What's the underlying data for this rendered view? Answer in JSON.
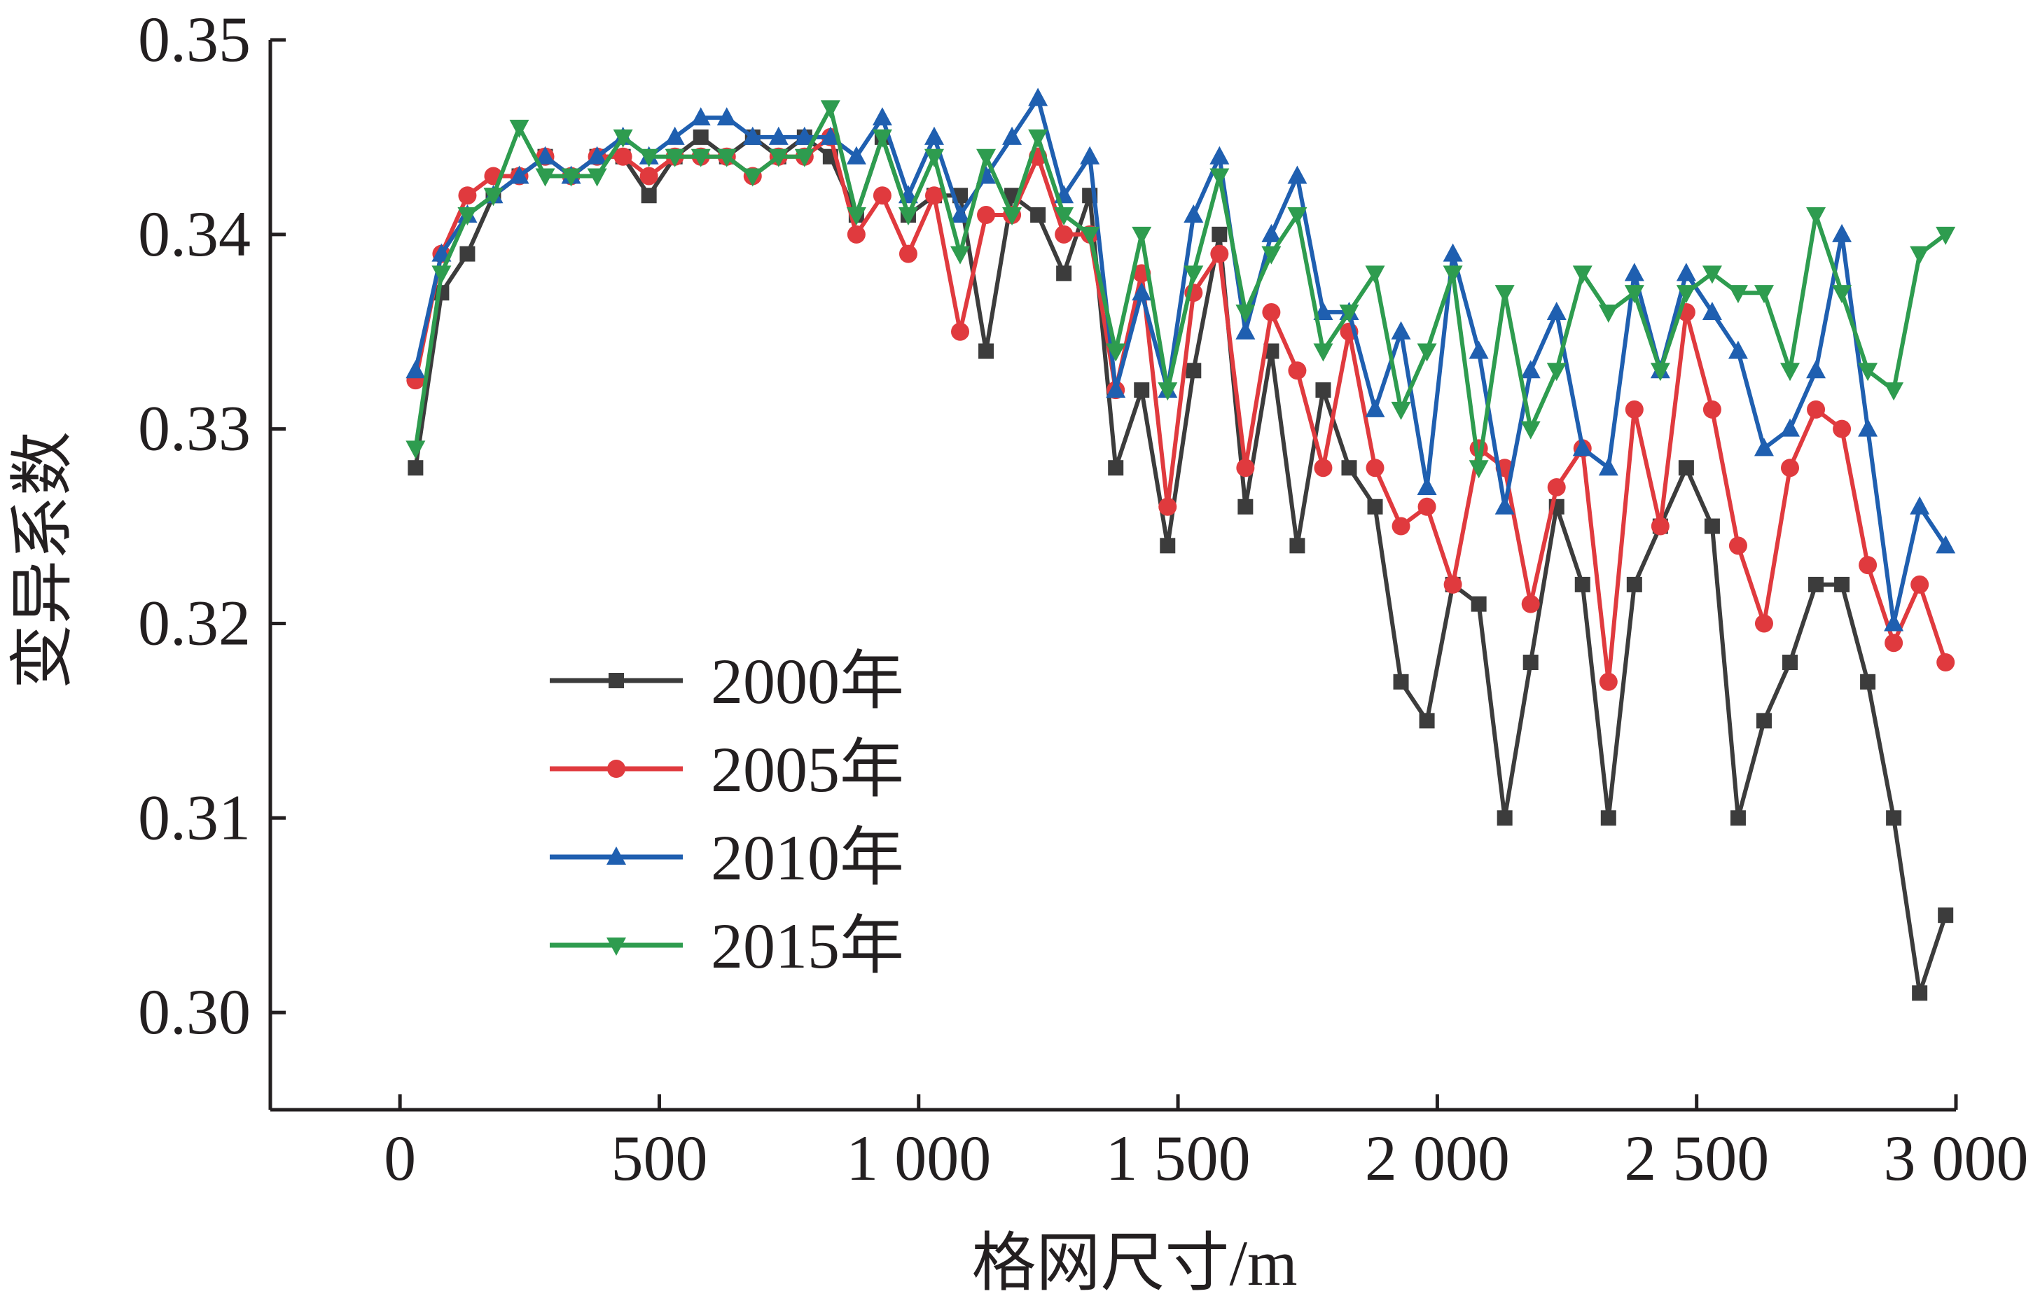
{
  "chart_data": {
    "type": "line",
    "xlabel": "格网尺寸/m",
    "ylabel": "变异系数",
    "xlim": [
      -250,
      3000
    ],
    "ylim": [
      0.295,
      0.35
    ],
    "x_ticks": [
      0,
      500,
      1000,
      1500,
      2000,
      2500,
      3000
    ],
    "x_tick_labels": [
      "0",
      "500",
      "1 000",
      "1 500",
      "2 000",
      "2 500",
      "3 000"
    ],
    "y_ticks": [
      0.3,
      0.31,
      0.32,
      0.33,
      0.34,
      0.35
    ],
    "y_tick_labels": [
      "0.30",
      "0.31",
      "0.32",
      "0.33",
      "0.34",
      "0.35"
    ],
    "legend_position": "lower-left",
    "x": [
      30,
      80,
      130,
      180,
      230,
      280,
      330,
      380,
      430,
      480,
      530,
      580,
      630,
      680,
      730,
      780,
      830,
      880,
      930,
      980,
      1030,
      1080,
      1130,
      1180,
      1230,
      1280,
      1330,
      1380,
      1430,
      1480,
      1530,
      1580,
      1630,
      1680,
      1730,
      1780,
      1830,
      1880,
      1930,
      1980,
      2030,
      2080,
      2130,
      2180,
      2230,
      2280,
      2330,
      2380,
      2430,
      2480,
      2530,
      2580,
      2630,
      2680,
      2730,
      2780,
      2830,
      2880,
      2930,
      2980
    ],
    "series": [
      {
        "name": "2000年",
        "color": "#3c3c3c",
        "marker": "square",
        "values": [
          0.328,
          0.337,
          0.339,
          0.342,
          0.343,
          0.344,
          0.343,
          0.344,
          0.344,
          0.342,
          0.344,
          0.345,
          0.344,
          0.345,
          0.344,
          0.345,
          0.344,
          0.341,
          0.345,
          0.341,
          0.342,
          0.342,
          0.334,
          0.342,
          0.341,
          0.338,
          0.342,
          0.328,
          0.332,
          0.324,
          0.333,
          0.34,
          0.326,
          0.334,
          0.324,
          0.332,
          0.328,
          0.326,
          0.317,
          0.315,
          0.322,
          0.321,
          0.31,
          0.318,
          0.326,
          0.322,
          0.31,
          0.322,
          0.325,
          0.328,
          0.325,
          0.31,
          0.315,
          0.318,
          0.322,
          0.322,
          0.317,
          0.31,
          0.301,
          0.305
        ]
      },
      {
        "name": "2005年",
        "color": "#e03a3e",
        "marker": "circle",
        "values": [
          0.3325,
          0.339,
          0.342,
          0.343,
          0.343,
          0.344,
          0.343,
          0.344,
          0.344,
          0.343,
          0.344,
          0.344,
          0.344,
          0.343,
          0.344,
          0.344,
          0.345,
          0.34,
          0.342,
          0.339,
          0.342,
          0.335,
          0.341,
          0.341,
          0.344,
          0.34,
          0.34,
          0.332,
          0.338,
          0.326,
          0.337,
          0.339,
          0.328,
          0.336,
          0.333,
          0.328,
          0.335,
          0.328,
          0.325,
          0.326,
          0.322,
          0.329,
          0.328,
          0.321,
          0.327,
          0.329,
          0.317,
          0.331,
          0.325,
          0.336,
          0.331,
          0.324,
          0.32,
          0.328,
          0.331,
          0.33,
          0.323,
          0.319,
          0.322,
          0.318
        ]
      },
      {
        "name": "2010年",
        "color": "#1f5fb0",
        "marker": "triangle-up",
        "values": [
          0.333,
          0.339,
          0.341,
          0.342,
          0.343,
          0.344,
          0.343,
          0.344,
          0.345,
          0.344,
          0.345,
          0.346,
          0.346,
          0.345,
          0.345,
          0.345,
          0.345,
          0.344,
          0.346,
          0.342,
          0.345,
          0.341,
          0.343,
          0.345,
          0.347,
          0.342,
          0.344,
          0.332,
          0.337,
          0.332,
          0.341,
          0.344,
          0.335,
          0.34,
          0.343,
          0.336,
          0.336,
          0.331,
          0.335,
          0.327,
          0.339,
          0.334,
          0.326,
          0.333,
          0.336,
          0.329,
          0.328,
          0.338,
          0.333,
          0.338,
          0.336,
          0.334,
          0.329,
          0.33,
          0.333,
          0.34,
          0.33,
          0.32,
          0.326,
          0.324
        ]
      },
      {
        "name": "2015年",
        "color": "#2e9c4f",
        "marker": "triangle-down",
        "values": [
          0.329,
          0.338,
          0.341,
          0.342,
          0.3455,
          0.343,
          0.343,
          0.343,
          0.345,
          0.344,
          0.344,
          0.344,
          0.344,
          0.343,
          0.344,
          0.344,
          0.3465,
          0.341,
          0.345,
          0.341,
          0.344,
          0.339,
          0.344,
          0.341,
          0.345,
          0.341,
          0.34,
          0.334,
          0.34,
          0.332,
          0.338,
          0.343,
          0.336,
          0.339,
          0.341,
          0.334,
          0.336,
          0.338,
          0.331,
          0.334,
          0.338,
          0.328,
          0.337,
          0.33,
          0.333,
          0.338,
          0.336,
          0.337,
          0.333,
          0.337,
          0.338,
          0.337,
          0.337,
          0.333,
          0.341,
          0.337,
          0.333,
          0.332,
          0.339,
          0.34
        ]
      }
    ]
  }
}
